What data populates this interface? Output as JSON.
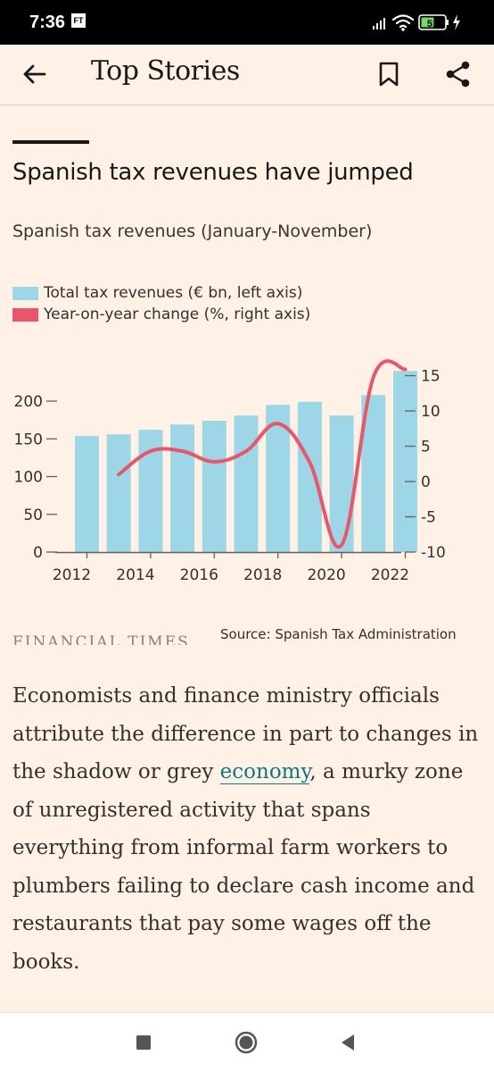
{
  "status_bar": {
    "time": "7:36",
    "app_badge": "FT",
    "battery": "51"
  },
  "app_bar": {
    "title": "Top Stories"
  },
  "chart": {
    "title": "Spanish tax revenues have jumped",
    "subtitle": "Spanish tax revenues (January-November)",
    "source": "Source: Spanish Tax Administration",
    "logo_text": "FINANCIAL TIMES"
  },
  "chart_data": {
    "type": "bar",
    "title": "Spanish tax revenues have jumped",
    "subtitle": "Spanish tax revenues (January-November)",
    "categories": [
      2012,
      2013,
      2014,
      2015,
      2016,
      2017,
      2018,
      2019,
      2020,
      2021,
      2022
    ],
    "x_tick_labels": [
      "2012",
      "2014",
      "2016",
      "2018",
      "2020",
      "2022"
    ],
    "left_axis": {
      "ylim": [
        0,
        240
      ],
      "ticks": [
        0,
        50,
        100,
        150,
        200
      ]
    },
    "right_axis": {
      "ylim": [
        -10,
        17
      ],
      "ticks": [
        -10,
        -5,
        0,
        5,
        10,
        15
      ]
    },
    "series": [
      {
        "name": "Total tax revenues (€ bn, left axis)",
        "type": "bar",
        "axis": "left",
        "color": "#9dd6e6",
        "values": [
          154,
          156,
          162,
          169,
          174,
          181,
          195,
          199,
          181,
          208,
          240
        ]
      },
      {
        "name": "Year-on-year change (%, right axis)",
        "type": "line",
        "axis": "right",
        "color": "#e8566b",
        "x": [
          2013,
          2014,
          2015,
          2016,
          2017,
          2018,
          2019,
          2020,
          2021,
          2022
        ],
        "values": [
          1,
          4.3,
          4.3,
          2.8,
          4.3,
          8.2,
          2.7,
          -9,
          14.8,
          15.9
        ]
      }
    ],
    "grid": false,
    "legend_position": "top-left"
  },
  "article": {
    "before_link": "Economists and finance ministry officials attribute the difference in part to changes in the shadow or grey ",
    "link_text": "economy",
    "after_link": ", a murky zone of unregistered activity that spans everything from informal farm workers to plumbers failing to declare cash income and restaurants that pay some wages off the books."
  }
}
